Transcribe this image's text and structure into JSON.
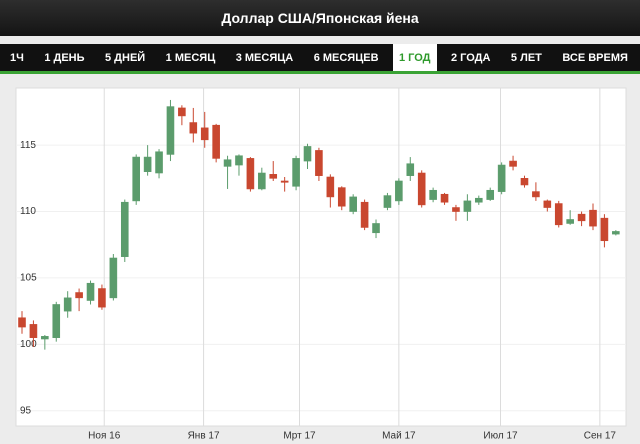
{
  "header": {
    "title": "Доллар США/Японская йена"
  },
  "tabs": [
    "1Ч",
    "1 ДЕНЬ",
    "5 ДНЕЙ",
    "1 МЕСЯЦ",
    "3 МЕСЯЦА",
    "6 МЕСЯЦЕВ",
    "1 ГОД",
    "2 ГОДА",
    "5 ЛЕТ",
    "ВСЕ ВРЕМЯ"
  ],
  "selected_tab": 6,
  "chart_data": {
    "type": "candlestick",
    "categories": [
      null,
      null,
      null,
      null,
      null,
      null,
      null,
      null,
      null,
      null,
      null,
      null,
      null,
      null,
      null,
      null,
      null,
      null,
      null,
      null,
      null,
      null,
      null,
      null,
      null,
      null,
      null,
      null,
      null,
      null,
      null,
      null,
      null,
      null,
      null,
      null,
      null,
      null,
      null,
      null,
      null,
      null,
      null,
      null,
      null,
      null,
      null,
      null,
      null,
      null,
      null,
      null,
      null
    ],
    "open": [
      102,
      101.5,
      100.4,
      100.5,
      102.5,
      103.9,
      103.3,
      104.2,
      103.5,
      106.6,
      110.8,
      113,
      112.9,
      114.3,
      117.8,
      116.7,
      116.3,
      116.5,
      113.4,
      113.5,
      114,
      111.7,
      112.8,
      112.3,
      111.9,
      113.8,
      114.6,
      112.6,
      111.8,
      110,
      110.7,
      108.4,
      110.3,
      110.8,
      112.7,
      112.9,
      110.9,
      111.3,
      110.3,
      110,
      110.7,
      110.9,
      111.5,
      113.8,
      112.5,
      111.5,
      110.8,
      110.6,
      109.1,
      109.8,
      110.1,
      109.5,
      108.3
    ],
    "high": [
      102.5,
      101.8,
      100.7,
      103.2,
      104,
      104.2,
      104.8,
      104.5,
      106.8,
      110.9,
      114.3,
      115,
      114.7,
      118.4,
      118,
      117.8,
      117.5,
      116.6,
      114.2,
      114.3,
      114.1,
      113.3,
      113.8,
      112.6,
      114.2,
      115.1,
      114.8,
      112.8,
      111.9,
      111.3,
      110.9,
      109.4,
      111.4,
      112.5,
      114.1,
      113.1,
      111.8,
      111.4,
      110.5,
      111.3,
      111.2,
      111.8,
      113.7,
      114.2,
      112.7,
      112.2,
      110.9,
      110.8,
      110.1,
      110,
      110.6,
      109.8,
      108.6
    ],
    "low": [
      100.8,
      99.8,
      99.6,
      100.2,
      102,
      102.5,
      103,
      102.6,
      103.3,
      106.2,
      110.5,
      112.7,
      112.5,
      113.8,
      116.5,
      115.2,
      114.8,
      113.7,
      111.7,
      112.7,
      111.5,
      111.6,
      112.3,
      111.5,
      111.6,
      113.2,
      112.3,
      110.3,
      110.1,
      109.8,
      108.6,
      108,
      110.1,
      110.5,
      112.3,
      110.3,
      110.7,
      110.5,
      109.3,
      109.3,
      110.5,
      110.8,
      111.3,
      113.1,
      111.8,
      110.8,
      110,
      108.8,
      109,
      108.9,
      108.6,
      107.3,
      108.2
    ],
    "close": [
      101.3,
      100.5,
      100.6,
      103,
      103.5,
      103.5,
      104.6,
      102.8,
      106.5,
      110.7,
      114.1,
      114.1,
      114.5,
      117.9,
      117.2,
      115.9,
      115.4,
      114,
      113.9,
      114.2,
      111.7,
      112.9,
      112.5,
      112.2,
      114,
      114.9,
      112.7,
      111.1,
      110.4,
      111.1,
      108.8,
      109.1,
      111.2,
      112.3,
      113.6,
      110.5,
      111.6,
      110.7,
      110,
      110.8,
      111,
      111.6,
      113.5,
      113.4,
      112,
      111.1,
      110.3,
      109,
      109.4,
      109.3,
      108.9,
      107.8,
      108.5
    ],
    "up_color": "#5b9c6c",
    "down_color": "#c9472f",
    "ylim": [
      94,
      119
    ],
    "yticks": [
      95,
      100,
      105,
      110,
      115
    ],
    "xticks": [
      {
        "value": 7.2,
        "label": "Ноя 16"
      },
      {
        "value": 15.9,
        "label": "Янв 17"
      },
      {
        "value": 24.3,
        "label": "Мрт 17"
      },
      {
        "value": 33,
        "label": "Май 17"
      },
      {
        "value": 41.9,
        "label": "Июл 17"
      },
      {
        "value": 50.6,
        "label": "Сен 17"
      }
    ],
    "grid": true
  }
}
